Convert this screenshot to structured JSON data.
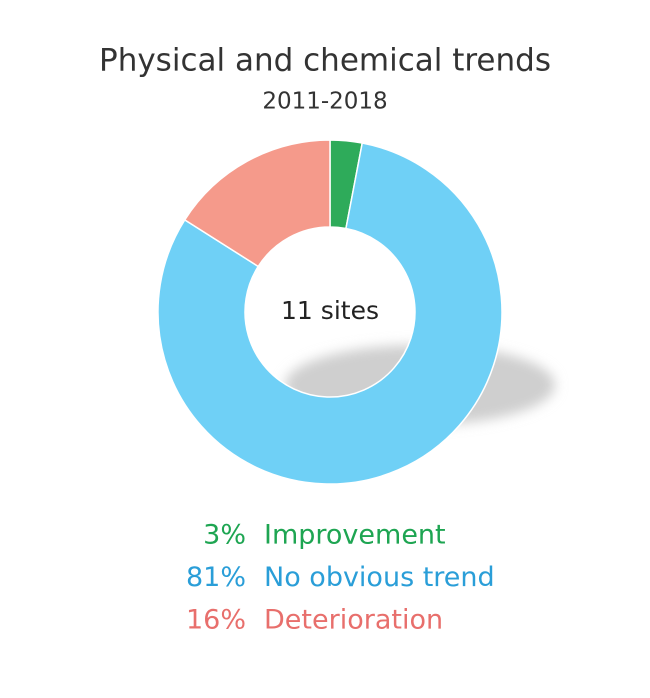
{
  "chart_data": {
    "type": "pie",
    "donut": true,
    "title": "Physical and chemical trends",
    "subtitle": "2011-2018",
    "center_label": "11 sites",
    "categories": [
      "Improvement",
      "No obvious trend",
      "Deterioration"
    ],
    "values": [
      3,
      81,
      16
    ],
    "value_labels": [
      "3%",
      "81%",
      "16%"
    ],
    "colors": [
      "#2eab5a",
      "#6fd0f6",
      "#f59a8b"
    ],
    "label_colors": [
      "#1ea552",
      "#2a9ed8",
      "#e86f6c"
    ]
  }
}
